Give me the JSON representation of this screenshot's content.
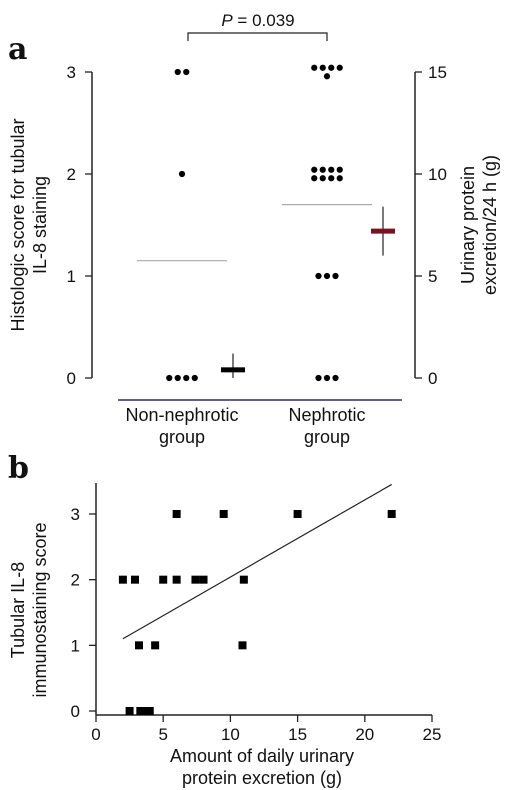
{
  "chart_data": [
    {
      "panel": "a",
      "type": "scatter",
      "groups": [
        "Non-nephrotic\ngroup",
        "Nephrotic\ngroup"
      ],
      "ylabel_left": "Histologic score for tubular\nIL-8 staining",
      "ylabel_right": "Urinary protein\nexcretion/24 h (g)",
      "left_ylim": [
        0,
        3
      ],
      "left_yticks": [
        "0",
        "1",
        "2",
        "3"
      ],
      "right_ylim": [
        0,
        15
      ],
      "right_yticks": [
        "0",
        "5",
        "10",
        "15"
      ],
      "annotation_prefix": "P",
      "annotation_value": " = 0.039",
      "scores": [
        {
          "group": "Non-nephrotic\ngroup",
          "counts": {
            "0": 4,
            "1": 0,
            "2": 1,
            "3": 2
          },
          "mean": 1.15
        },
        {
          "group": "Nephrotic\ngroup",
          "counts": {
            "0": 3,
            "1": 3,
            "2": 8,
            "3": 5
          },
          "mean": 1.7
        }
      ],
      "protein_excretion": [
        {
          "group": "Non-nephrotic\ngroup",
          "mean": 0.4,
          "error": 0.8
        },
        {
          "group": "Nephrotic\ngroup",
          "mean": 7.2,
          "error": 1.2
        }
      ],
      "colors": {
        "mean_marker": "#000000",
        "nephrotic_marker": "#7a1020",
        "mean_line": "#aaaaaa",
        "axis": "#222222",
        "axis_bottom": "#2a2a6a"
      }
    },
    {
      "panel": "b",
      "type": "scatter",
      "xlabel": "Amount of daily urinary\nprotein excretion (g)",
      "ylabel": "Tubular IL-8\nimmunostaining score",
      "xlim": [
        0,
        25
      ],
      "xticks": [
        "0",
        "5",
        "10",
        "15",
        "20",
        "25"
      ],
      "ylim": [
        0,
        3
      ],
      "yticks": [
        "0",
        "1",
        "2",
        "3"
      ],
      "points": [
        {
          "x": 2.0,
          "y": 2
        },
        {
          "x": 2.9,
          "y": 2
        },
        {
          "x": 3.2,
          "y": 1
        },
        {
          "x": 5.0,
          "y": 2
        },
        {
          "x": 6.0,
          "y": 2
        },
        {
          "x": 6.0,
          "y": 3
        },
        {
          "x": 7.4,
          "y": 2
        },
        {
          "x": 8.0,
          "y": 2
        },
        {
          "x": 9.5,
          "y": 3
        },
        {
          "x": 11.0,
          "y": 2
        },
        {
          "x": 10.9,
          "y": 1
        },
        {
          "x": 15.0,
          "y": 3
        },
        {
          "x": 22.0,
          "y": 3
        },
        {
          "x": 4.4,
          "y": 1
        },
        {
          "x": 2.5,
          "y": 0
        },
        {
          "x": 3.3,
          "y": 0
        },
        {
          "x": 3.7,
          "y": 0
        },
        {
          "x": 4.0,
          "y": 0
        }
      ],
      "regression": {
        "x": [
          2,
          22
        ],
        "y": [
          1.1,
          3.45
        ]
      },
      "colors": {
        "point": "#000000",
        "line": "#222222",
        "axis": "#222222"
      }
    }
  ]
}
